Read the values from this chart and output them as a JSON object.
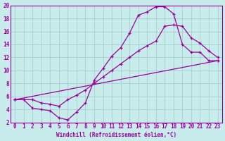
{
  "background_color": "#c8ecec",
  "grid_color": "#a0c8c8",
  "line_color": "#990099",
  "xlabel": "Windchill (Refroidissement éolien,°C)",
  "xlim": [
    -0.5,
    23.5
  ],
  "ylim": [
    2,
    20
  ],
  "xticks": [
    0,
    1,
    2,
    3,
    4,
    5,
    6,
    7,
    8,
    9,
    10,
    11,
    12,
    13,
    14,
    15,
    16,
    17,
    18,
    19,
    20,
    21,
    22,
    23
  ],
  "yticks": [
    2,
    4,
    6,
    8,
    10,
    12,
    14,
    16,
    18,
    20
  ],
  "line1_x": [
    0,
    1,
    2,
    3,
    4,
    5,
    6,
    7,
    8,
    9,
    10,
    11,
    12,
    13,
    14,
    15,
    16,
    17,
    18,
    19,
    20,
    21,
    22,
    23
  ],
  "line1_y": [
    5.5,
    5.5,
    4.2,
    4.0,
    3.8,
    2.7,
    2.4,
    3.6,
    5.0,
    8.5,
    10.3,
    12.2,
    13.5,
    15.7,
    18.5,
    19.0,
    19.8,
    19.8,
    18.7,
    14.0,
    12.8,
    12.8,
    11.5,
    11.5
  ],
  "line2_x": [
    0,
    1,
    2,
    3,
    4,
    5,
    6,
    7,
    8,
    9,
    10,
    11,
    12,
    13,
    14,
    15,
    16,
    17,
    18,
    19,
    20,
    21,
    22,
    23
  ],
  "line2_y": [
    5.5,
    5.5,
    5.5,
    5.0,
    4.8,
    4.5,
    5.5,
    6.2,
    7.0,
    8.0,
    9.0,
    10.0,
    11.0,
    12.0,
    13.0,
    13.8,
    14.5,
    16.8,
    17.0,
    16.8,
    15.0,
    14.2,
    13.0,
    12.0
  ],
  "line3_x": [
    0,
    23
  ],
  "line3_y": [
    5.5,
    11.5
  ]
}
